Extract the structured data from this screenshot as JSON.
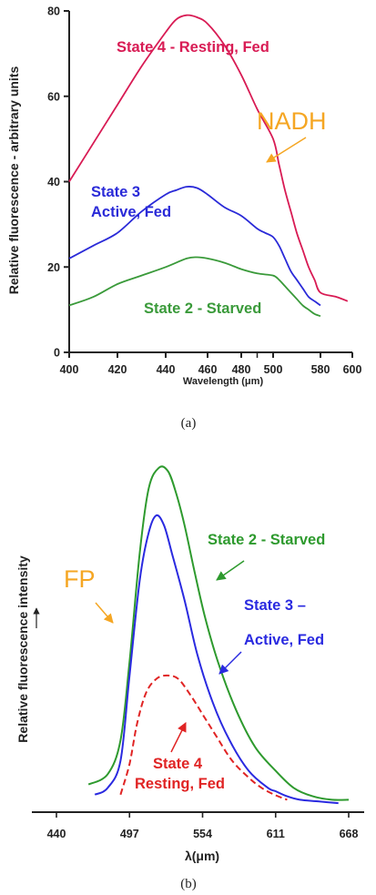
{
  "chart_data": [
    {
      "type": "line",
      "caption": "(a)",
      "xlabel": "Wavelength (μm)",
      "ylabel": "Relative fluorescence - arbitrary units",
      "xlim": [
        400,
        600
      ],
      "ylim": [
        0,
        80
      ],
      "xticks": [
        400,
        420,
        440,
        460,
        480,
        500,
        580,
        600
      ],
      "xtick_labels": [
        "400",
        "420",
        "440",
        "460",
        "480",
        "500",
        "580",
        "600"
      ],
      "yticks": [
        0,
        20,
        40,
        60,
        80
      ],
      "ytick_labels": [
        "0",
        "20",
        "40",
        "60",
        "80"
      ],
      "grid": false,
      "series": [
        {
          "name": "State 4 - Resting, Fed",
          "color": "#d81b54",
          "x": [
            400,
            410,
            420,
            430,
            440,
            445,
            450,
            455,
            460,
            470,
            480,
            490,
            500,
            510,
            520,
            530,
            540,
            550,
            560,
            570,
            580,
            590,
            597
          ],
          "y": [
            40,
            49,
            58,
            67,
            75,
            78,
            79,
            78.5,
            77,
            72,
            65,
            57,
            50,
            44,
            38,
            33,
            28,
            24,
            20,
            17,
            14,
            13,
            12
          ]
        },
        {
          "name": "State 3 Active, Fed",
          "color": "#2a2ad8",
          "x": [
            400,
            410,
            420,
            430,
            440,
            445,
            450,
            455,
            460,
            470,
            480,
            490,
            495,
            500,
            510,
            520,
            530,
            540,
            550,
            560,
            570,
            580
          ],
          "y": [
            22,
            25,
            28,
            33,
            37,
            38,
            38.8,
            38.5,
            37,
            34,
            32,
            29,
            28,
            27,
            25,
            22,
            19,
            17,
            15,
            13,
            12,
            11
          ]
        },
        {
          "name": "State 2 - Starved",
          "color": "#3a9a3a",
          "x": [
            400,
            410,
            420,
            430,
            440,
            450,
            455,
            460,
            470,
            480,
            490,
            500,
            510,
            520,
            530,
            540,
            550,
            560,
            570,
            580
          ],
          "y": [
            11,
            13,
            16,
            18,
            20,
            22,
            22.3,
            22,
            21,
            19.5,
            18.5,
            18,
            17,
            15.5,
            14,
            12.5,
            11,
            10,
            9,
            8.5
          ]
        }
      ],
      "annotations": [
        {
          "text": "NADH",
          "color": "#f5a623"
        }
      ]
    },
    {
      "type": "line",
      "caption": "(b)",
      "xlabel": "λ(μm)",
      "ylabel": "Relative fluorescence intensity",
      "xlim": [
        440,
        668
      ],
      "ylim": [
        0,
        100
      ],
      "xticks": [
        440,
        497,
        554,
        611,
        668
      ],
      "xtick_labels": [
        "440",
        "497",
        "554",
        "611",
        "668"
      ],
      "grid": false,
      "series": [
        {
          "name": "State 2 - Starved",
          "color": "#2e9a2e",
          "style": "solid",
          "x": [
            465,
            480,
            490,
            497,
            505,
            512,
            520,
            527,
            533,
            540,
            548,
            556,
            566,
            580,
            595,
            611,
            625,
            640,
            655,
            668
          ],
          "y": [
            6,
            9,
            19,
            42,
            74,
            93,
            99,
            98,
            92,
            82,
            68,
            55,
            42,
            28,
            17,
            10,
            5,
            2.5,
            1.5,
            1.5
          ]
        },
        {
          "name": "State 3 – Active, Fed",
          "color": "#2a2ae0",
          "style": "solid",
          "x": [
            470,
            480,
            490,
            497,
            505,
            512,
            518,
            524,
            530,
            540,
            550,
            562,
            575,
            590,
            605,
            611,
            620,
            630,
            645,
            660
          ],
          "y": [
            3,
            5,
            13,
            38,
            66,
            80,
            85,
            82,
            74,
            60,
            44,
            30,
            19,
            10,
            5,
            4,
            2.5,
            1.5,
            1,
            0.5
          ]
        },
        {
          "name": "State 4 Resting, Fed",
          "color": "#e02424",
          "style": "dashed",
          "x": [
            490,
            497,
            503,
            510,
            518,
            526,
            535,
            545,
            555,
            565,
            577,
            590,
            600,
            610,
            620
          ],
          "y": [
            3,
            12,
            24,
            33,
            37,
            38,
            37,
            32,
            26,
            20,
            13,
            8,
            5,
            3,
            1.5
          ]
        }
      ],
      "annotations": [
        {
          "text": "FP",
          "color": "#f5a623"
        }
      ]
    }
  ]
}
